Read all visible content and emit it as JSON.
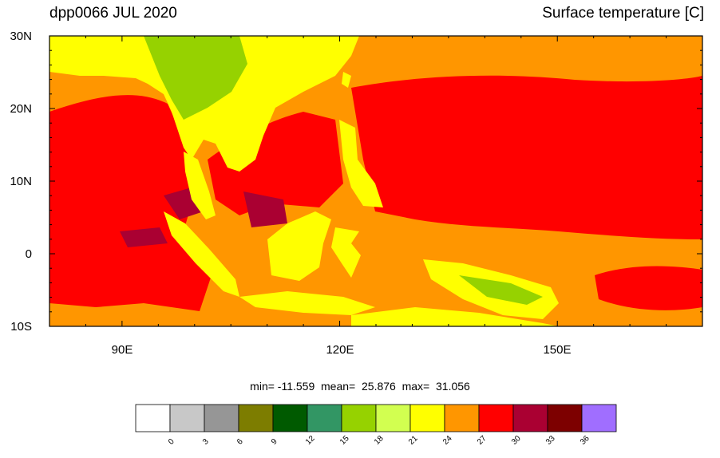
{
  "title": {
    "left": "dpp0066 JUL 2020",
    "right": "Surface temperature [C]"
  },
  "axes": {
    "lat_labels": [
      "30N",
      "20N",
      "10N",
      "0",
      "10S"
    ],
    "lat_values": [
      30,
      20,
      10,
      0,
      -10
    ],
    "lon_labels": [
      "90E",
      "120E",
      "150E"
    ],
    "lon_values": [
      90,
      120,
      150
    ],
    "lon_range": [
      80,
      170
    ],
    "lat_range": [
      -10,
      30
    ]
  },
  "stats": {
    "text": "min= -11.559  mean=  25.876  max=  31.056"
  },
  "colorbar": {
    "colors": [
      "#ffffff",
      "#c8c8c8",
      "#969696",
      "#7d7d00",
      "#005a00",
      "#329664",
      "#96d200",
      "#d2ff50",
      "#ffff00",
      "#ff9600",
      "#ff0000",
      "#aa0032",
      "#7d0000",
      "#a06eff"
    ],
    "labels": [
      "0",
      "3",
      "6",
      "9",
      "12",
      "15",
      "18",
      "21",
      "24",
      "27",
      "30",
      "33",
      "36"
    ]
  },
  "colors": {
    "ocean_warm": "#ff0000",
    "ocean_mild": "#ff9600",
    "land_yellow": "#ffff00",
    "land_green": "#96d200",
    "hot_pool": "#aa0032"
  }
}
